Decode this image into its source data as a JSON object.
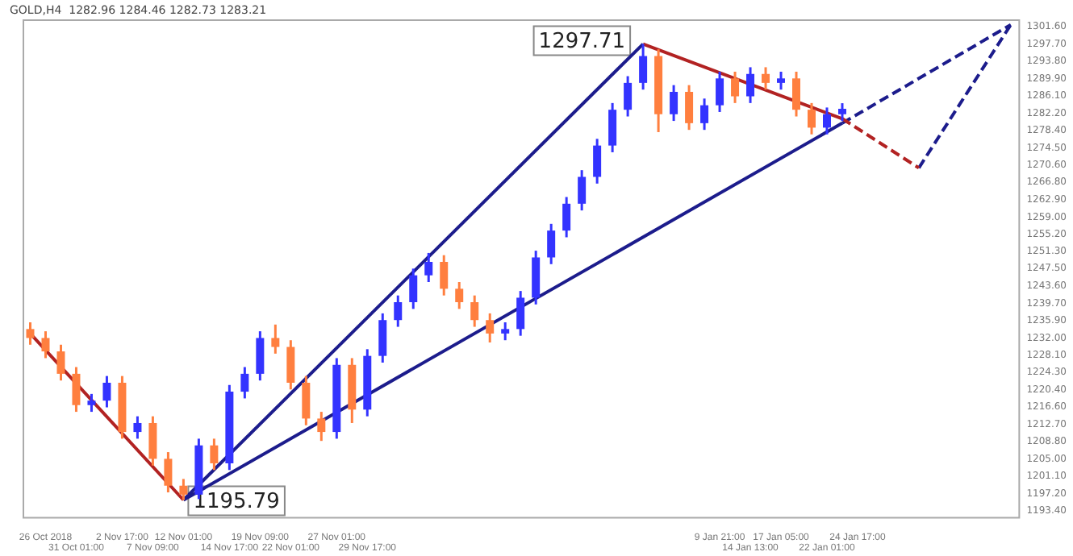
{
  "chart_data": {
    "type": "candlestick",
    "title": "GOLD,H4  1282.96 1284.46 1282.73 1283.21",
    "categories": [
      null,
      "26 Oct 2018",
      null,
      "31 Oct 01:00",
      null,
      null,
      "2 Nov 17:00",
      null,
      "7 Nov 09:00",
      null,
      "12 Nov 01:00",
      null,
      null,
      "14 Nov 17:00",
      null,
      "19 Nov 09:00",
      null,
      "22 Nov 01:00",
      null,
      null,
      "27 Nov 01:00",
      null,
      "29 Nov 17:00",
      null,
      null,
      null,
      null,
      null,
      null,
      null,
      null,
      null,
      null,
      null,
      null,
      null,
      null,
      null,
      null,
      null,
      null,
      null,
      null,
      null,
      null,
      "9 Jan 21:00",
      null,
      "14 Jan 13:00",
      null,
      "17 Jan 05:00",
      null,
      null,
      "22 Jan 01:00",
      null,
      "24 Jan 17:00",
      null,
      null,
      null,
      null,
      null,
      null,
      null,
      null,
      null,
      null
    ],
    "ohlc": [
      [
        1234,
        1235.5,
        1230.5,
        1232
      ],
      [
        1232,
        1233.5,
        1227.5,
        1229
      ],
      [
        1229,
        1230.5,
        1222.5,
        1224
      ],
      [
        1224,
        1225.5,
        1215.5,
        1217
      ],
      [
        1217,
        1219.5,
        1215.5,
        1218
      ],
      [
        1218,
        1223.5,
        1216.5,
        1222
      ],
      [
        1222,
        1223.5,
        1209.5,
        1211
      ],
      [
        1211,
        1214.5,
        1209.5,
        1213
      ],
      [
        1213,
        1214.5,
        1203.5,
        1205
      ],
      [
        1205,
        1206.5,
        1197.5,
        1199
      ],
      [
        1199,
        1200.5,
        1195.79,
        1197
      ],
      [
        1197,
        1209.5,
        1196,
        1208
      ],
      [
        1208,
        1209.5,
        1202.5,
        1204
      ],
      [
        1204,
        1221.5,
        1202.5,
        1220
      ],
      [
        1220,
        1225.5,
        1218.5,
        1224
      ],
      [
        1224,
        1233.5,
        1222.5,
        1232
      ],
      [
        1232,
        1235,
        1228.5,
        1230
      ],
      [
        1230,
        1231.5,
        1220.5,
        1222
      ],
      [
        1222,
        1223.5,
        1212.5,
        1214
      ],
      [
        1214,
        1215.5,
        1209,
        1211
      ],
      [
        1211,
        1227.5,
        1209.5,
        1226
      ],
      [
        1226,
        1227.5,
        1213,
        1216
      ],
      [
        1216,
        1229.5,
        1214.5,
        1228
      ],
      [
        1228,
        1237.5,
        1226.5,
        1236
      ],
      [
        1236,
        1241.5,
        1234.5,
        1240
      ],
      [
        1240,
        1247.5,
        1238.5,
        1246
      ],
      [
        1246,
        1251,
        1244.5,
        1249
      ],
      [
        1249,
        1250.5,
        1241.5,
        1243
      ],
      [
        1243,
        1244.5,
        1238.5,
        1240
      ],
      [
        1240,
        1241.5,
        1234.5,
        1236
      ],
      [
        1236,
        1237.5,
        1231,
        1233
      ],
      [
        1233,
        1235.5,
        1231.5,
        1234
      ],
      [
        1234,
        1242.5,
        1232.5,
        1241
      ],
      [
        1241,
        1251.5,
        1239.5,
        1250
      ],
      [
        1250,
        1257.5,
        1248.5,
        1256
      ],
      [
        1256,
        1263.5,
        1254.5,
        1262
      ],
      [
        1262,
        1269.5,
        1260.5,
        1268
      ],
      [
        1268,
        1276.5,
        1266.5,
        1275
      ],
      [
        1275,
        1284.5,
        1273.5,
        1283
      ],
      [
        1283,
        1290.5,
        1281.5,
        1289
      ],
      [
        1289,
        1297.71,
        1287.5,
        1295
      ],
      [
        1295,
        1296.5,
        1278,
        1282
      ],
      [
        1282,
        1288.5,
        1280.5,
        1287
      ],
      [
        1287,
        1288.5,
        1278.5,
        1280
      ],
      [
        1280,
        1285.5,
        1278.5,
        1284
      ],
      [
        1284,
        1291.5,
        1282.5,
        1290
      ],
      [
        1290,
        1291.5,
        1284.5,
        1286
      ],
      [
        1286,
        1292.5,
        1284.5,
        1291
      ],
      [
        1291,
        1292.5,
        1287.5,
        1289
      ],
      [
        1289,
        1291.5,
        1287.5,
        1290
      ],
      [
        1290,
        1291.5,
        1281.5,
        1283
      ],
      [
        1283,
        1284.5,
        1277.5,
        1279
      ],
      [
        1279,
        1283.5,
        1277.5,
        1282
      ],
      [
        1282,
        1284.46,
        1280.5,
        1283.21
      ],
      null,
      null,
      null,
      null,
      null,
      null,
      null,
      null,
      null,
      null,
      null
    ],
    "colors": [
      "#ff7f3f",
      "#ff7f3f",
      "#ff7f3f",
      "#ff7f3f",
      "#3333ff",
      "#3333ff",
      "#ff7f3f",
      "#3333ff",
      "#ff7f3f",
      "#ff7f3f",
      "#ff7f3f",
      "#3333ff",
      "#ff7f3f",
      "#3333ff",
      "#3333ff",
      "#3333ff",
      "#ff7f3f",
      "#ff7f3f",
      "#ff7f3f",
      "#ff7f3f",
      "#3333ff",
      "#ff7f3f",
      "#3333ff",
      "#3333ff",
      "#3333ff",
      "#3333ff",
      "#3333ff",
      "#ff7f3f",
      "#ff7f3f",
      "#ff7f3f",
      "#ff7f3f",
      "#3333ff",
      "#3333ff",
      "#3333ff",
      "#3333ff",
      "#3333ff",
      "#3333ff",
      "#3333ff",
      "#3333ff",
      "#3333ff",
      "#3333ff",
      "#ff7f3f",
      "#3333ff",
      "#ff7f3f",
      "#3333ff",
      "#3333ff",
      "#ff7f3f",
      "#3333ff",
      "#ff7f3f",
      "#3333ff",
      "#ff7f3f",
      "#ff7f3f",
      "#3333ff",
      "#3333ff",
      null,
      null,
      null,
      null,
      null,
      null,
      null,
      null,
      null,
      null,
      null
    ],
    "series": [
      {
        "type": "line",
        "color": "#b22222",
        "line_style": "solid",
        "values": [
          1233,
          null,
          null,
          null,
          null,
          null,
          null,
          null,
          null,
          null,
          1195.8,
          null,
          null,
          null,
          null,
          null,
          null,
          null,
          null,
          null,
          null,
          null,
          null,
          null,
          null,
          null,
          null,
          null,
          null,
          null,
          null,
          null,
          null,
          null,
          null,
          null,
          null,
          null,
          null,
          null,
          null,
          null,
          null,
          null,
          null,
          null,
          null,
          null,
          null,
          null,
          null,
          null,
          null,
          null,
          null,
          null,
          null,
          null,
          null,
          null,
          null,
          null,
          null,
          null,
          null
        ]
      },
      {
        "type": "line",
        "color": "#1c1c8c",
        "line_style": "solid",
        "values": [
          null,
          null,
          null,
          null,
          null,
          null,
          null,
          null,
          null,
          null,
          1195.8,
          null,
          null,
          null,
          null,
          null,
          null,
          null,
          null,
          null,
          null,
          null,
          null,
          null,
          null,
          null,
          null,
          null,
          null,
          null,
          null,
          null,
          null,
          null,
          null,
          null,
          null,
          null,
          null,
          null,
          1297.7,
          null,
          null,
          null,
          null,
          null,
          null,
          null,
          null,
          null,
          null,
          null,
          null,
          null,
          null,
          null,
          null,
          null,
          null,
          null,
          null,
          null,
          null,
          null,
          null
        ]
      },
      {
        "type": "line",
        "color": "#b22222",
        "line_style": "solid",
        "values": [
          null,
          null,
          null,
          null,
          null,
          null,
          null,
          null,
          null,
          null,
          null,
          null,
          null,
          null,
          null,
          null,
          null,
          null,
          null,
          null,
          null,
          null,
          null,
          null,
          null,
          null,
          null,
          null,
          null,
          null,
          null,
          null,
          null,
          null,
          null,
          null,
          null,
          null,
          null,
          null,
          1297.7,
          null,
          null,
          null,
          null,
          null,
          null,
          null,
          null,
          null,
          null,
          null,
          null,
          1281,
          null,
          null,
          null,
          null,
          null,
          null,
          null,
          null,
          null,
          null,
          null
        ]
      },
      {
        "type": "line",
        "color": "#b22222",
        "line_style": "dashed",
        "values": [
          null,
          null,
          null,
          null,
          null,
          null,
          null,
          null,
          null,
          null,
          null,
          null,
          null,
          null,
          null,
          null,
          null,
          null,
          null,
          null,
          null,
          null,
          null,
          null,
          null,
          null,
          null,
          null,
          null,
          null,
          null,
          null,
          null,
          null,
          null,
          null,
          null,
          null,
          null,
          null,
          null,
          null,
          null,
          null,
          null,
          null,
          null,
          null,
          null,
          null,
          null,
          null,
          null,
          1281,
          null,
          null,
          null,
          null,
          1270,
          null,
          null,
          null,
          null,
          null,
          null
        ]
      },
      {
        "type": "line",
        "color": "#1c1c8c",
        "line_style": "solid",
        "values": [
          null,
          null,
          null,
          null,
          null,
          null,
          null,
          null,
          null,
          null,
          1195.8,
          null,
          null,
          null,
          null,
          null,
          null,
          null,
          null,
          null,
          null,
          null,
          null,
          null,
          null,
          null,
          null,
          null,
          null,
          null,
          null,
          null,
          null,
          null,
          null,
          null,
          null,
          null,
          null,
          null,
          null,
          null,
          null,
          null,
          null,
          null,
          null,
          null,
          null,
          null,
          null,
          null,
          null,
          1280,
          null,
          null,
          null,
          null,
          null,
          null,
          null,
          null,
          null,
          null,
          null
        ]
      },
      {
        "type": "line",
        "color": "#1c1c8c",
        "line_style": "dashed",
        "values": [
          null,
          null,
          null,
          null,
          null,
          null,
          null,
          null,
          null,
          null,
          null,
          null,
          null,
          null,
          null,
          null,
          null,
          null,
          null,
          null,
          null,
          null,
          null,
          null,
          null,
          null,
          null,
          null,
          null,
          null,
          null,
          null,
          null,
          null,
          null,
          null,
          null,
          null,
          null,
          null,
          null,
          null,
          null,
          null,
          null,
          null,
          null,
          null,
          null,
          null,
          null,
          null,
          null,
          1280,
          null,
          null,
          null,
          null,
          null,
          null,
          null,
          null,
          null,
          null,
          1302
        ]
      },
      {
        "type": "line",
        "color": "#1c1c8c",
        "line_style": "dashed",
        "values": [
          null,
          null,
          null,
          null,
          null,
          null,
          null,
          null,
          null,
          null,
          null,
          null,
          null,
          null,
          null,
          null,
          null,
          null,
          null,
          null,
          null,
          null,
          null,
          null,
          null,
          null,
          null,
          null,
          null,
          null,
          null,
          null,
          null,
          null,
          null,
          null,
          null,
          null,
          null,
          null,
          null,
          null,
          null,
          null,
          null,
          null,
          null,
          null,
          null,
          null,
          null,
          null,
          null,
          null,
          null,
          null,
          null,
          null,
          1270,
          null,
          null,
          null,
          null,
          null,
          1302
        ]
      }
    ],
    "annotations": [
      "1297.71",
      {
        "text": "1195.79",
        "x": "12 Nov 01:00",
        "y": 1195.79
      }
    ],
    "ylim": [
      1192,
      1303.2
    ],
    "yticks": [
      {
        "value": 1193.4,
        "label": "1193.40"
      },
      {
        "value": 1197.2,
        "label": "1197.20"
      },
      {
        "value": 1201.1,
        "label": "1201.10"
      },
      {
        "value": 1205,
        "label": "1205.00"
      },
      {
        "value": 1208.8,
        "label": "1208.80"
      },
      {
        "value": 1212.7,
        "label": "1212.70"
      },
      {
        "value": 1216.6,
        "label": "1216.60"
      },
      {
        "value": 1220.4,
        "label": "1220.40"
      },
      {
        "value": 1224.3,
        "label": "1224.30"
      },
      {
        "value": 1228.1,
        "label": "1228.10"
      },
      {
        "value": 1232,
        "label": "1232.00"
      },
      {
        "value": 1235.9,
        "label": "1235.90"
      },
      {
        "value": 1239.7,
        "label": "1239.70"
      },
      {
        "value": 1243.6,
        "label": "1243.60"
      },
      {
        "value": 1247.5,
        "label": "1247.50"
      },
      {
        "value": 1251.3,
        "label": "1251.30"
      },
      {
        "value": 1255.2,
        "label": "1255.20"
      },
      {
        "value": 1259,
        "label": "1259.00"
      },
      {
        "value": 1262.9,
        "label": "1262.90"
      },
      {
        "value": 1266.8,
        "label": "1266.80"
      },
      {
        "value": 1270.6,
        "label": "1270.60"
      },
      {
        "value": 1274.5,
        "label": "1274.50"
      },
      {
        "value": 1278.4,
        "label": "1278.40"
      },
      {
        "value": 1282.2,
        "label": "1282.20"
      },
      {
        "value": 1286.1,
        "label": "1286.10"
      },
      {
        "value": 1289.9,
        "label": "1289.90"
      },
      {
        "value": 1293.8,
        "label": "1293.80"
      },
      {
        "value": 1297.7,
        "label": "1297.70"
      },
      {
        "value": 1301.6,
        "label": "1301.60"
      }
    ]
  }
}
